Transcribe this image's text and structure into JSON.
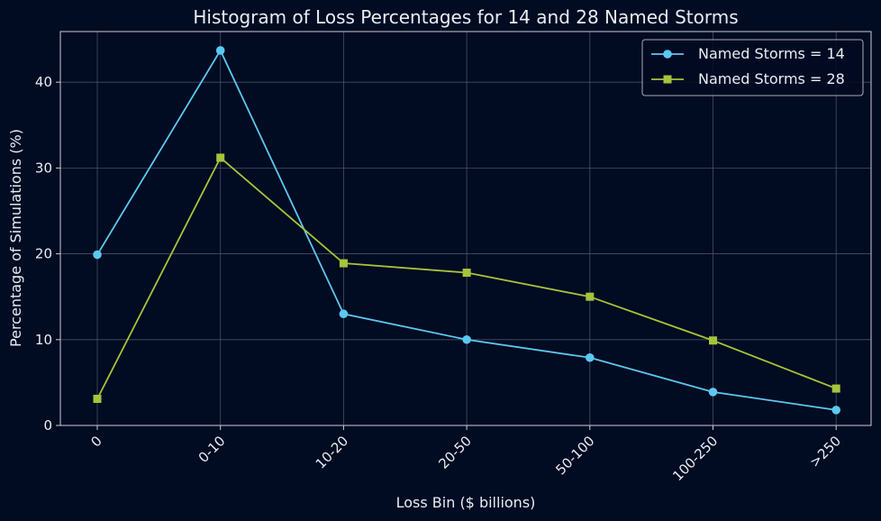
{
  "chart_data": {
    "type": "line",
    "title": "Histogram of Loss Percentages for 14 and 28 Named Storms",
    "xlabel": "Loss Bin ($ billions)",
    "ylabel": "Percentage of Simulations (%)",
    "categories": [
      "0",
      "0-10",
      "10-20",
      "20-50",
      "50-100",
      "100-250",
      ">250"
    ],
    "ylim": [
      0,
      45.9
    ],
    "yticks": [
      0,
      10,
      20,
      30,
      40
    ],
    "grid": true,
    "legend_position": "top-right",
    "series": [
      {
        "name": "Named Storms = 14",
        "color": "#5bc8f0",
        "marker": "circle",
        "values": [
          19.9,
          43.7,
          13.0,
          10.0,
          7.9,
          3.9,
          1.8
        ]
      },
      {
        "name": "Named Storms = 28",
        "color": "#a6c43b",
        "marker": "square",
        "values": [
          3.1,
          31.2,
          18.9,
          17.8,
          15.0,
          9.9,
          4.3
        ]
      }
    ]
  }
}
